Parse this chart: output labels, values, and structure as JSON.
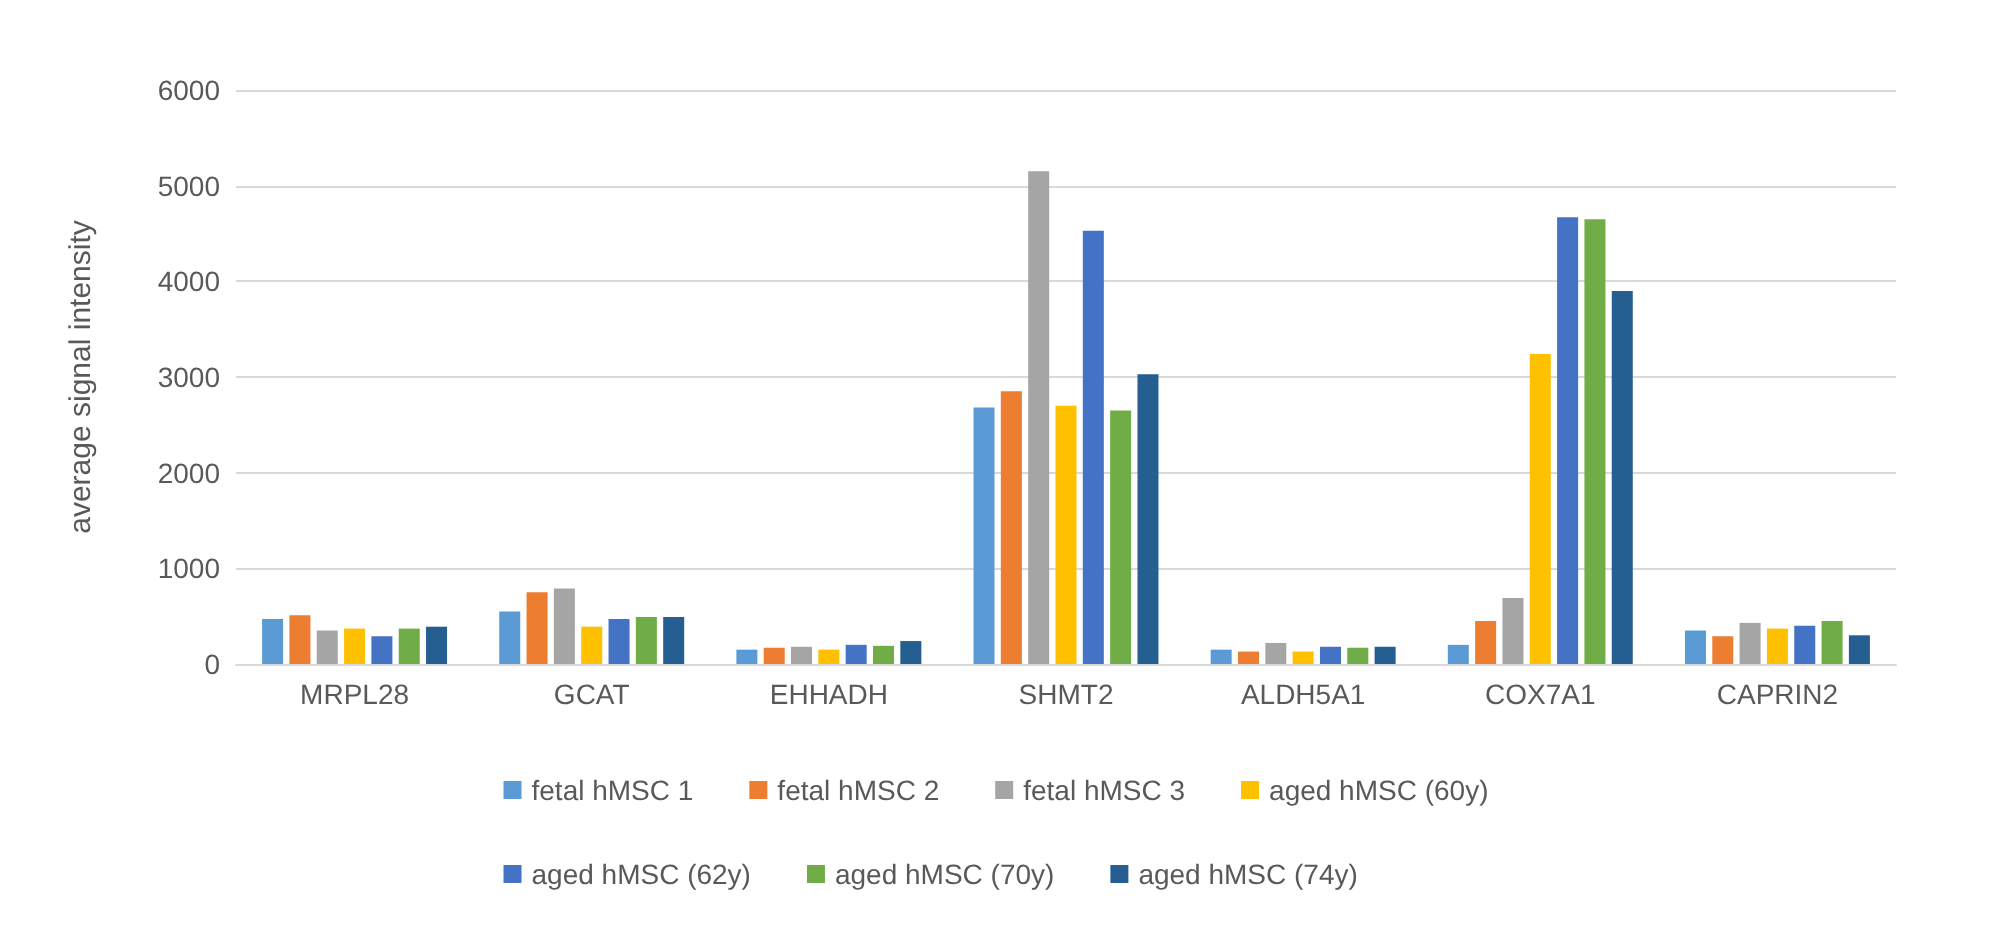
{
  "chart_data": {
    "type": "bar",
    "ylabel": "average signal intensity",
    "categories": [
      "MRPL28",
      "GCAT",
      "EHHADH",
      "SHMT2",
      "ALDH5A1",
      "COX7A1",
      "CAPRIN2"
    ],
    "series": [
      {
        "name": "fetal hMSC 1",
        "color": "#5b9bd5",
        "values": [
          470,
          550,
          150,
          2680,
          150,
          200,
          350
        ]
      },
      {
        "name": "fetal hMSC 2",
        "color": "#ed7d31",
        "values": [
          510,
          750,
          170,
          2850,
          130,
          450,
          290
        ]
      },
      {
        "name": "fetal hMSC 3",
        "color": "#a5a5a5",
        "values": [
          350,
          790,
          180,
          5150,
          220,
          690,
          430
        ]
      },
      {
        "name": "aged hMSC (60y)",
        "color": "#ffc000",
        "values": [
          370,
          390,
          150,
          2700,
          130,
          3240,
          370
        ]
      },
      {
        "name": "aged hMSC (62y)",
        "color": "#4472c4",
        "values": [
          290,
          470,
          200,
          4530,
          180,
          4670,
          400
        ]
      },
      {
        "name": "aged hMSC (70y)",
        "color": "#70ad47",
        "values": [
          370,
          490,
          190,
          2650,
          170,
          4650,
          450
        ]
      },
      {
        "name": "aged hMSC (74y)",
        "color": "#255e91",
        "values": [
          390,
          490,
          240,
          3030,
          180,
          3900,
          300
        ]
      }
    ],
    "ylim": [
      0,
      6000
    ],
    "yticks": [
      0,
      1000,
      2000,
      3000,
      4000,
      5000,
      6000
    ],
    "grid": "y",
    "legend": "bottom"
  }
}
